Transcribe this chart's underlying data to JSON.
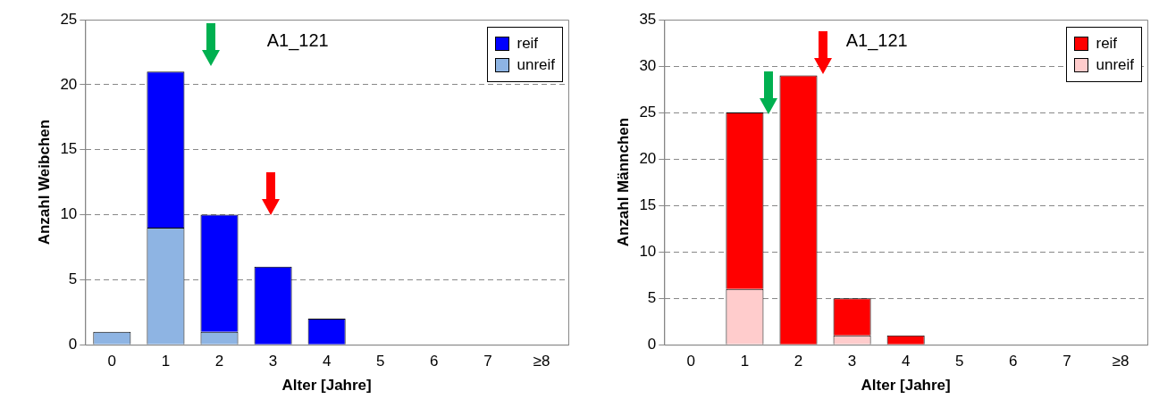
{
  "chart_data": [
    {
      "type": "bar",
      "stacked": true,
      "categories": [
        "0",
        "1",
        "2",
        "3",
        "4",
        "5",
        "6",
        "7",
        "≥8"
      ],
      "xlabel": "Alter [Jahre]",
      "ylabel": "Anzahl Weibchen",
      "ylim": [
        0,
        25
      ],
      "yticks": [
        0,
        5,
        10,
        15,
        20,
        25
      ],
      "grid": "y",
      "legend": "top right",
      "annotations": [
        "A1_121"
      ],
      "series": [
        {
          "name": "unreif",
          "color": "#8eb4e3",
          "values": [
            1,
            9,
            1,
            0,
            0,
            0,
            0,
            0,
            0
          ]
        },
        {
          "name": "reif",
          "color": "#0000ff",
          "values": [
            0,
            12,
            9,
            6,
            2,
            0,
            0,
            0,
            0
          ]
        }
      ]
    },
    {
      "type": "bar",
      "stacked": true,
      "categories": [
        "0",
        "1",
        "2",
        "3",
        "4",
        "5",
        "6",
        "7",
        "≥8"
      ],
      "xlabel": "Alter [Jahre]",
      "ylabel": "Anzahl Männchen",
      "ylim": [
        0,
        35
      ],
      "yticks": [
        0,
        5,
        10,
        15,
        20,
        25,
        30,
        35
      ],
      "grid": "y",
      "legend": "top right",
      "annotations": [
        "A1_121"
      ],
      "series": [
        {
          "name": "unreif",
          "color": "#ffcccc",
          "values": [
            0,
            6,
            0,
            1,
            0,
            0,
            0,
            0,
            0
          ]
        },
        {
          "name": "reif",
          "color": "#ff0000",
          "values": [
            0,
            19,
            29,
            4,
            1,
            0,
            0,
            0,
            0
          ]
        }
      ]
    }
  ]
}
